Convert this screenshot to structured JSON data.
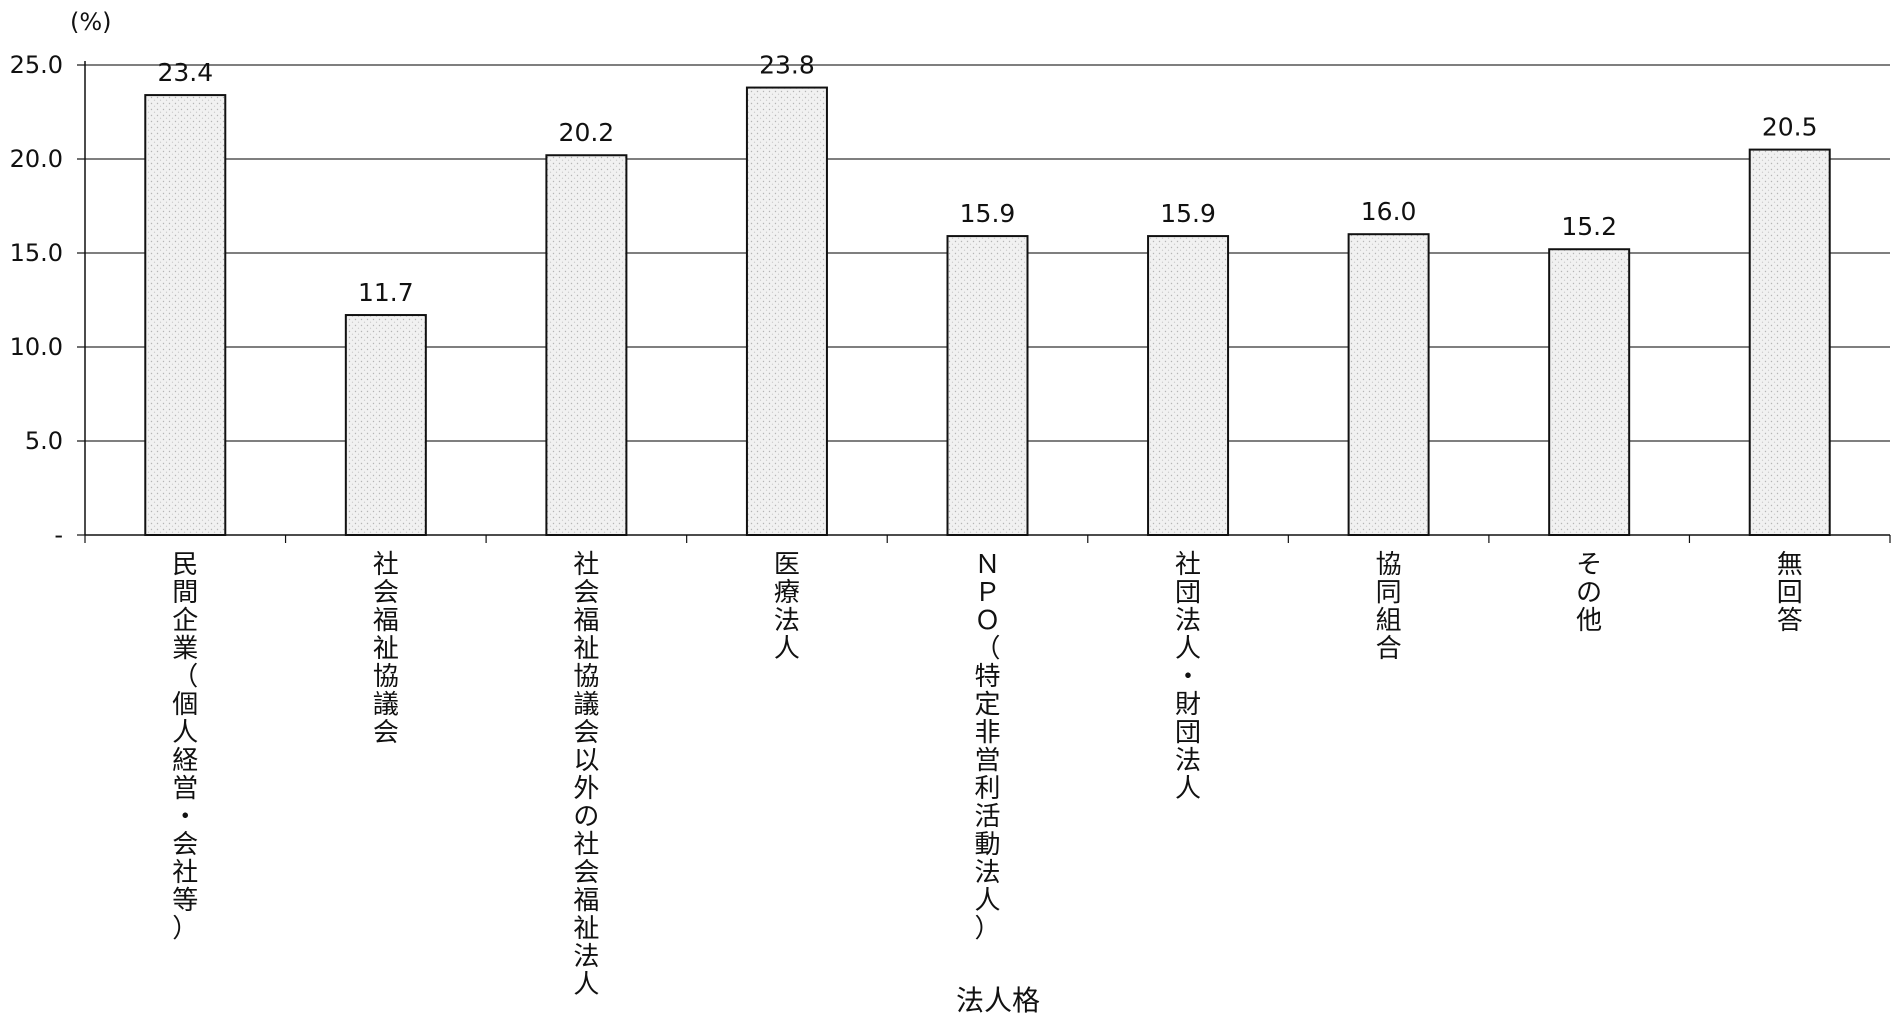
{
  "chart_data": {
    "type": "bar",
    "unit_label": "(%)",
    "x_axis_title": "法人格",
    "categories": [
      "民間企業（個人経営・会社等）",
      "社会福祉協議会",
      "社会福祉協議会以外の社会福祉法人",
      "医療法人",
      "ＮＰＯ（特定非営利活動法人）",
      "社団法人・財団法人",
      "協同組合",
      "その他",
      "無回答"
    ],
    "values": [
      23.4,
      11.7,
      20.2,
      23.8,
      15.9,
      15.9,
      16.0,
      15.2,
      20.5
    ],
    "value_labels": [
      "23.4",
      "11.7",
      "20.2",
      "23.8",
      "15.9",
      "15.9",
      "16.0",
      "15.2",
      "20.5"
    ],
    "y_ticks": [
      {
        "value": 0,
        "label": "-"
      },
      {
        "value": 5,
        "label": "5.0"
      },
      {
        "value": 10,
        "label": "10.0"
      },
      {
        "value": 15,
        "label": "15.0"
      },
      {
        "value": 20,
        "label": "20.0"
      },
      {
        "value": 25,
        "label": "25.0"
      }
    ],
    "ylim": [
      0,
      25
    ],
    "grid": true,
    "colors": {
      "bar_fill": "#ececec",
      "bar_stroke": "#111111",
      "grid": "#333333",
      "axis": "#111111"
    }
  }
}
